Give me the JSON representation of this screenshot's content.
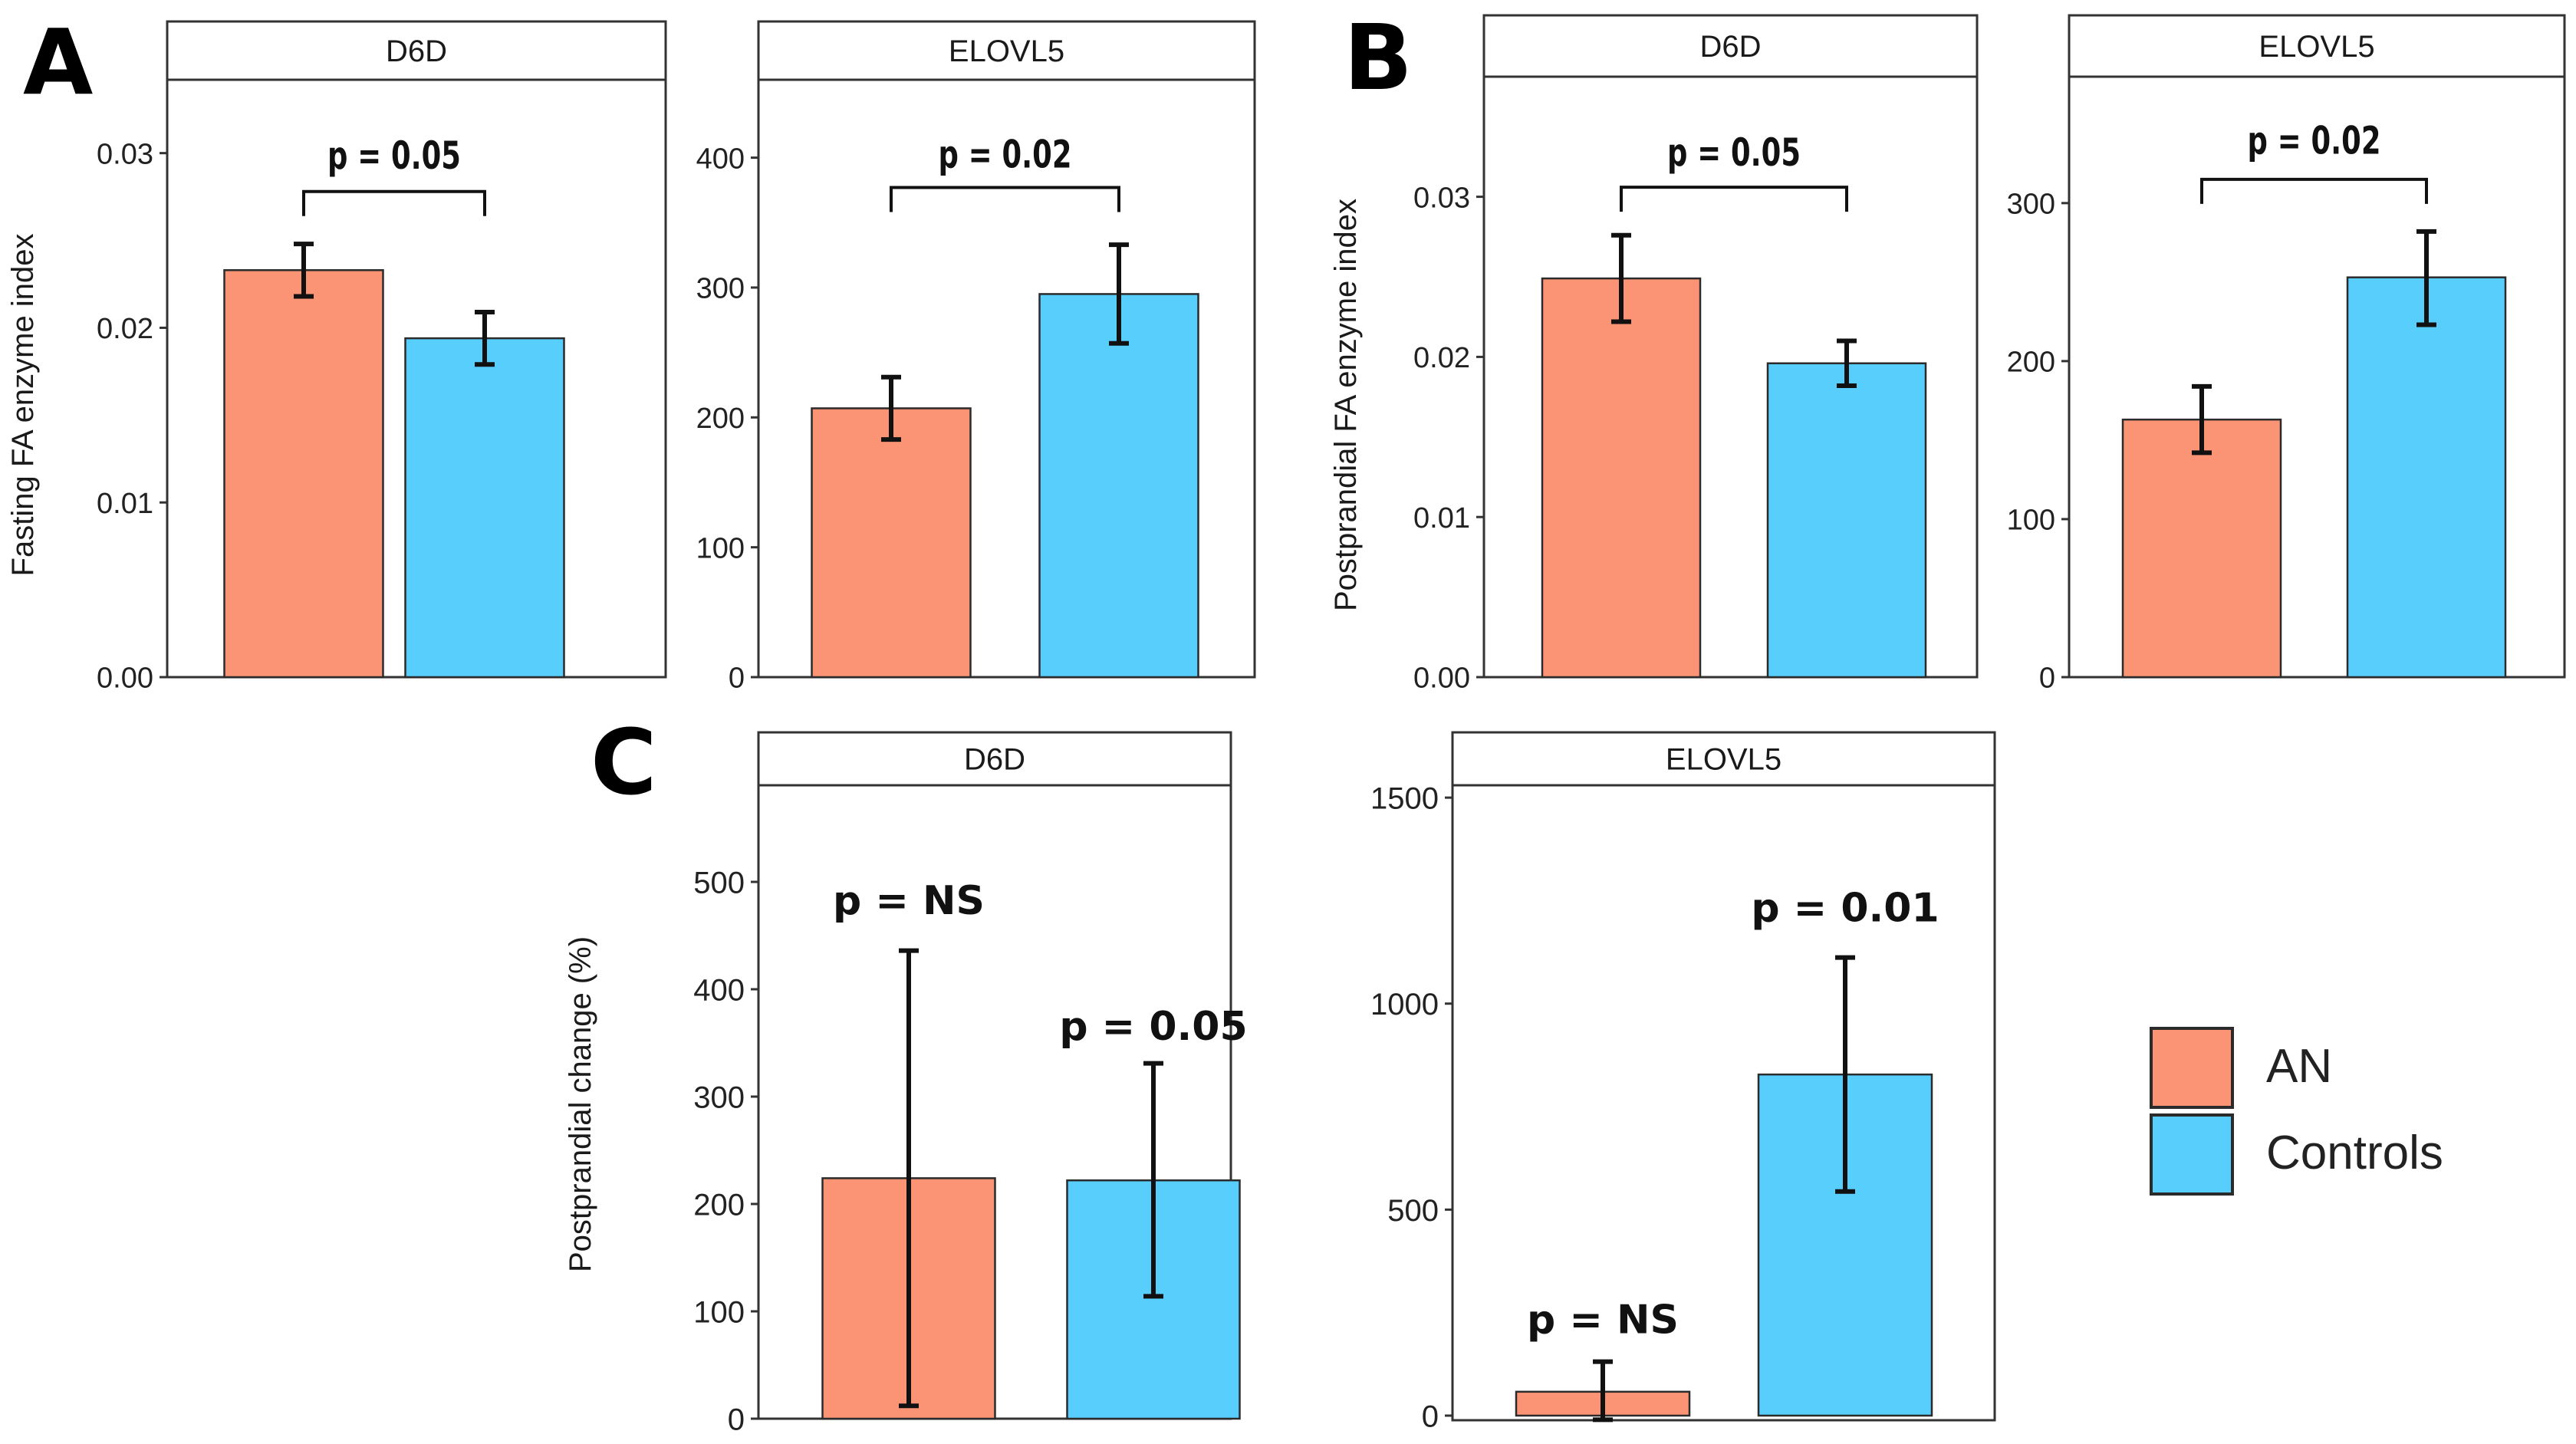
{
  "colors": {
    "an": "#FA9475",
    "controls": "#57CEFC",
    "frame": "#333333",
    "strip_bg": "#FFFFFF"
  },
  "legend": {
    "items": [
      {
        "label": "AN",
        "color": "#FA9475"
      },
      {
        "label": "Controls",
        "color": "#57CEFC"
      }
    ]
  },
  "chart_data": [
    {
      "id": "A-D6D",
      "panel_label": "A",
      "type": "bar",
      "title": "D6D",
      "ylabel": "Fasting FA enzyme index",
      "ylim": [
        0,
        0.0342
      ],
      "ticks": [
        0,
        0.01,
        0.02,
        0.03
      ],
      "tick_labels": [
        "0.00",
        "0.01",
        "0.02",
        "0.03"
      ],
      "categories": [
        "AN",
        "Controls"
      ],
      "values": [
        0.0233,
        0.0194
      ],
      "errors": [
        [
          0.0218,
          0.0248
        ],
        [
          0.0179,
          0.0209
        ]
      ],
      "comparison": {
        "text": "p = 0.05",
        "y": 0.0278,
        "label_y": 0.0299
      }
    },
    {
      "id": "A-ELOVL5",
      "type": "bar",
      "title": "ELOVL5",
      "ylabel": "",
      "ylim": [
        0,
        460
      ],
      "ticks": [
        0,
        100,
        200,
        300,
        400
      ],
      "tick_labels": [
        "0",
        "100",
        "200",
        "300",
        "400"
      ],
      "categories": [
        "AN",
        "Controls"
      ],
      "values": [
        207,
        295
      ],
      "errors": [
        [
          183,
          231
        ],
        [
          257,
          333
        ]
      ],
      "comparison": {
        "text": "p = 0.02",
        "y": 377,
        "label_y": 403
      }
    },
    {
      "id": "B-D6D",
      "panel_label": "B",
      "type": "bar",
      "title": "D6D",
      "ylabel": "Postprandial FA enzyme index",
      "ylim": [
        0,
        0.0375
      ],
      "ticks": [
        0,
        0.01,
        0.02,
        0.03
      ],
      "tick_labels": [
        "0.00",
        "0.01",
        "0.02",
        "0.03"
      ],
      "categories": [
        "AN",
        "Controls"
      ],
      "values": [
        0.0249,
        0.0196
      ],
      "errors": [
        [
          0.0222,
          0.0276
        ],
        [
          0.0182,
          0.021
        ]
      ],
      "comparison": {
        "text": "p = 0.05",
        "y": 0.0306,
        "label_y": 0.0328
      }
    },
    {
      "id": "B-ELOVL5",
      "type": "bar",
      "title": "ELOVL5",
      "ylabel": "",
      "ylim": [
        0,
        380
      ],
      "ticks": [
        0,
        100,
        200,
        300
      ],
      "tick_labels": [
        "0",
        "100",
        "200",
        "300"
      ],
      "categories": [
        "AN",
        "Controls"
      ],
      "values": [
        163,
        253
      ],
      "errors": [
        [
          142,
          184
        ],
        [
          223,
          282
        ]
      ],
      "comparison": {
        "text": "p = 0.02",
        "y": 315,
        "label_y": 340
      }
    },
    {
      "id": "C-D6D",
      "panel_label": "C",
      "type": "bar",
      "title": "D6D",
      "ylabel": "Postprandial change (%)",
      "ylim": [
        0,
        590
      ],
      "ticks": [
        0,
        100,
        200,
        300,
        400,
        500
      ],
      "tick_labels": [
        "0",
        "100",
        "200",
        "300",
        "400",
        "500"
      ],
      "categories": [
        "AN",
        "Controls"
      ],
      "values": [
        224,
        222
      ],
      "errors": [
        [
          12,
          436
        ],
        [
          114,
          331
        ]
      ],
      "pvalues": [
        {
          "text": "p = NS",
          "y": 470
        },
        {
          "text": "p = 0.05",
          "y": 353
        }
      ]
    },
    {
      "id": "C-ELOVL5",
      "type": "bar",
      "title": "ELOVL5",
      "ylabel": "",
      "ylim": [
        0,
        1530
      ],
      "ticks": [
        0,
        500,
        1000,
        1500
      ],
      "tick_labels": [
        "0",
        "500",
        "1000",
        "1500"
      ],
      "categories": [
        "AN",
        "Controls"
      ],
      "values": [
        58,
        828
      ],
      "errors": [
        [
          -10,
          131
        ],
        [
          544,
          1112
        ]
      ],
      "pvalues": [
        {
          "text": "p = NS",
          "y": 200
        },
        {
          "text": "p = 0.01",
          "y": 1200
        }
      ]
    }
  ]
}
